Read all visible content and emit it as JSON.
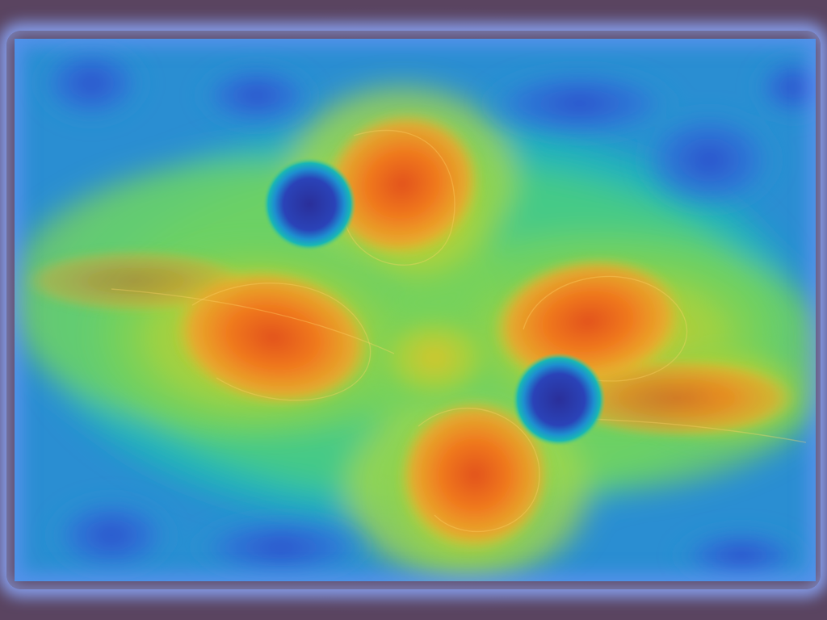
{
  "image": {
    "kind": "heatmap-visualization",
    "frame_color": "#5a4460",
    "border_glow_color": "#8aa6ff",
    "colors": {
      "background_low": "#2f5fd0",
      "cool": "#20a6c8",
      "mid": "#6fcf5a",
      "warm": "#e2c22c",
      "hot": "#f07a1e",
      "hottest": "#e2521a",
      "hole_core": "#2a2f9a",
      "hole_ring": "#18b7b4"
    },
    "text": []
  }
}
